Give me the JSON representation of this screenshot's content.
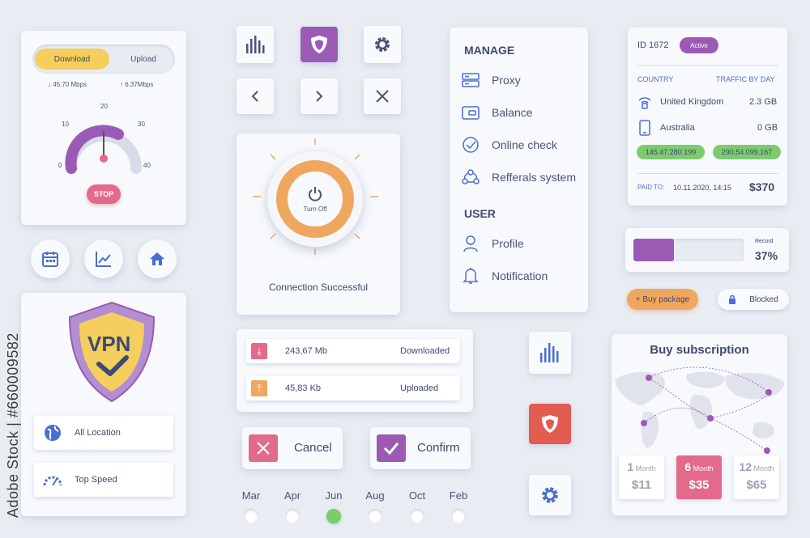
{
  "speed_card": {
    "tab_download": "Download",
    "tab_upload": "Upload",
    "download_rate": "45.70 Mbps",
    "upload_rate": "6.37Mbps",
    "gauge_ticks": [
      "0",
      "10",
      "20",
      "30",
      "40"
    ],
    "stop_label": "STOP"
  },
  "vpn_card": {
    "shield_text": "VPN",
    "option_location": "All Location",
    "option_speed": "Top Speed"
  },
  "power_card": {
    "button_label": "Turn Off",
    "status": "Connection Successful"
  },
  "transfer_card": {
    "downloaded_value": "243,67 Mb",
    "downloaded_label": "Downloaded",
    "uploaded_value": "45,83 Kb",
    "uploaded_label": "Uploaded"
  },
  "actions": {
    "cancel_label": "Cancel",
    "confirm_label": "Confirm"
  },
  "months": [
    "Mar",
    "Apr",
    "Jun",
    "Aug",
    "Oct",
    "Feb"
  ],
  "selected_month": "Jun",
  "menu": {
    "manage_heading": "MANAGE",
    "proxy": "Proxy",
    "balance": "Balance",
    "online_check": "Online check",
    "referrals": "Refferals system",
    "user_heading": "USER",
    "profile": "Profile",
    "notification": "Notification"
  },
  "info_card": {
    "id": "ID 1672",
    "status": "Active",
    "col_country": "COUNTRY",
    "col_traffic": "TRAFFIC BY DAY",
    "country_1": "United Kingdom",
    "traffic_1": "2.3 GB",
    "country_2": "Australia",
    "traffic_2": "0 GB",
    "ip_1": "145.47.280.199",
    "ip_2": "290.54.099.167",
    "paid_label": "PAID TO:",
    "paid_date": "10.11.2020, 14:15",
    "amount": "$370"
  },
  "progress": {
    "label": "Record",
    "percent_text": "37%",
    "value": 0.37
  },
  "buttons": {
    "buy_package": "+ Buy package",
    "blocked": "Blocked"
  },
  "subscription": {
    "title": "Buy subscription",
    "plans": [
      {
        "count": "1",
        "unit": "Month",
        "price": "$11"
      },
      {
        "count": "6",
        "unit": "Month",
        "price": "$35"
      },
      {
        "count": "12",
        "unit": "Month",
        "price": "$65"
      }
    ]
  },
  "colors": {
    "purple": "#9b5bb5",
    "orange": "#efa75f",
    "pink": "#e36a8a",
    "red": "#e25c4f",
    "green": "#7ccb6f",
    "blue": "#4a6fd0"
  },
  "watermark": "Adobe Stock | #660009582"
}
